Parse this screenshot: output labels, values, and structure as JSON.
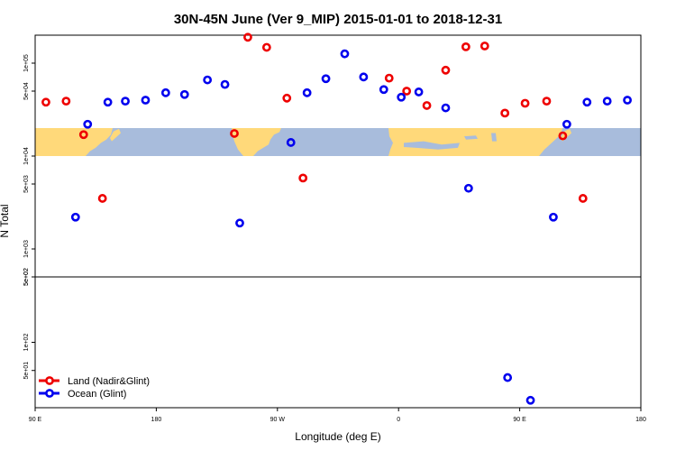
{
  "chart_data": {
    "type": "scatter",
    "title": "30N-45N June (Ver 9_MIP)   2015-01-01 to 2018-12-31",
    "xlabel": "Longitude (deg E)",
    "ylabel": "N Total",
    "x_ticks": [
      {
        "value": 90,
        "label": "90 E"
      },
      {
        "value": 180,
        "label": "180"
      },
      {
        "value": 270,
        "label": "90 W"
      },
      {
        "value": 360,
        "label": "0"
      },
      {
        "value": 450,
        "label": "90 E"
      },
      {
        "value": 540,
        "label": "180"
      }
    ],
    "xlim": [
      90,
      540
    ],
    "y_scale": "log",
    "upper_panel": {
      "ylim": [
        500,
        200000
      ],
      "y_ticks": [
        {
          "value": 500,
          "label": "5e+02"
        },
        {
          "value": 1000,
          "label": "1e+03"
        },
        {
          "value": 5000,
          "label": "5e+03"
        },
        {
          "value": 10000,
          "label": "1e+04"
        },
        {
          "value": 50000,
          "label": "5e+04"
        },
        {
          "value": 100000,
          "label": "1e+05"
        }
      ],
      "map_strip_range": [
        10000,
        20000
      ]
    },
    "lower_panel": {
      "ylim": [
        20,
        500
      ],
      "y_ticks": [
        {
          "value": 500,
          "label": "5e+02"
        },
        {
          "value": 100,
          "label": "1e+02"
        },
        {
          "value": 50,
          "label": "5e+01"
        }
      ]
    },
    "series": [
      {
        "name": "Land (Nadir&Glint)",
        "color": "#ee0000",
        "points": [
          {
            "x": 98,
            "y": 38000
          },
          {
            "x": 113,
            "y": 39000
          },
          {
            "x": 126,
            "y": 17000
          },
          {
            "x": 140,
            "y": 3500
          },
          {
            "x": 238,
            "y": 17500
          },
          {
            "x": 248,
            "y": 190000
          },
          {
            "x": 262,
            "y": 148000
          },
          {
            "x": 277,
            "y": 42000
          },
          {
            "x": 289,
            "y": 5800
          },
          {
            "x": 353,
            "y": 69000
          },
          {
            "x": 366,
            "y": 50000
          },
          {
            "x": 381,
            "y": 35000
          },
          {
            "x": 395,
            "y": 84000
          },
          {
            "x": 410,
            "y": 150000
          },
          {
            "x": 424,
            "y": 153000
          },
          {
            "x": 439,
            "y": 29000
          },
          {
            "x": 454,
            "y": 37000
          },
          {
            "x": 470,
            "y": 39000
          },
          {
            "x": 482,
            "y": 16500
          },
          {
            "x": 497,
            "y": 3500
          }
        ]
      },
      {
        "name": "Ocean (Glint)",
        "color": "#0000ee",
        "points": [
          {
            "x": 120,
            "y": 2200
          },
          {
            "x": 129,
            "y": 22000
          },
          {
            "x": 144,
            "y": 38000
          },
          {
            "x": 157,
            "y": 39000
          },
          {
            "x": 172,
            "y": 40000
          },
          {
            "x": 187,
            "y": 48000
          },
          {
            "x": 201,
            "y": 46000
          },
          {
            "x": 218,
            "y": 66000
          },
          {
            "x": 231,
            "y": 59000
          },
          {
            "x": 242,
            "y": 1900
          },
          {
            "x": 280,
            "y": 14000
          },
          {
            "x": 292,
            "y": 48000
          },
          {
            "x": 306,
            "y": 68000
          },
          {
            "x": 320,
            "y": 126000
          },
          {
            "x": 334,
            "y": 71000
          },
          {
            "x": 349,
            "y": 52000
          },
          {
            "x": 362,
            "y": 43000
          },
          {
            "x": 375,
            "y": 49000
          },
          {
            "x": 395,
            "y": 33000
          },
          {
            "x": 412,
            "y": 4500
          },
          {
            "x": 441,
            "y": 42
          },
          {
            "x": 458,
            "y": 24
          },
          {
            "x": 475,
            "y": 2200
          },
          {
            "x": 485,
            "y": 22000
          },
          {
            "x": 500,
            "y": 38000
          },
          {
            "x": 515,
            "y": 39000
          },
          {
            "x": 530,
            "y": 40000
          }
        ]
      }
    ],
    "legend_position": "bottom-left"
  },
  "colors": {
    "land_fill": "#ffd97a",
    "ocean_fill": "#a8bcdc"
  }
}
